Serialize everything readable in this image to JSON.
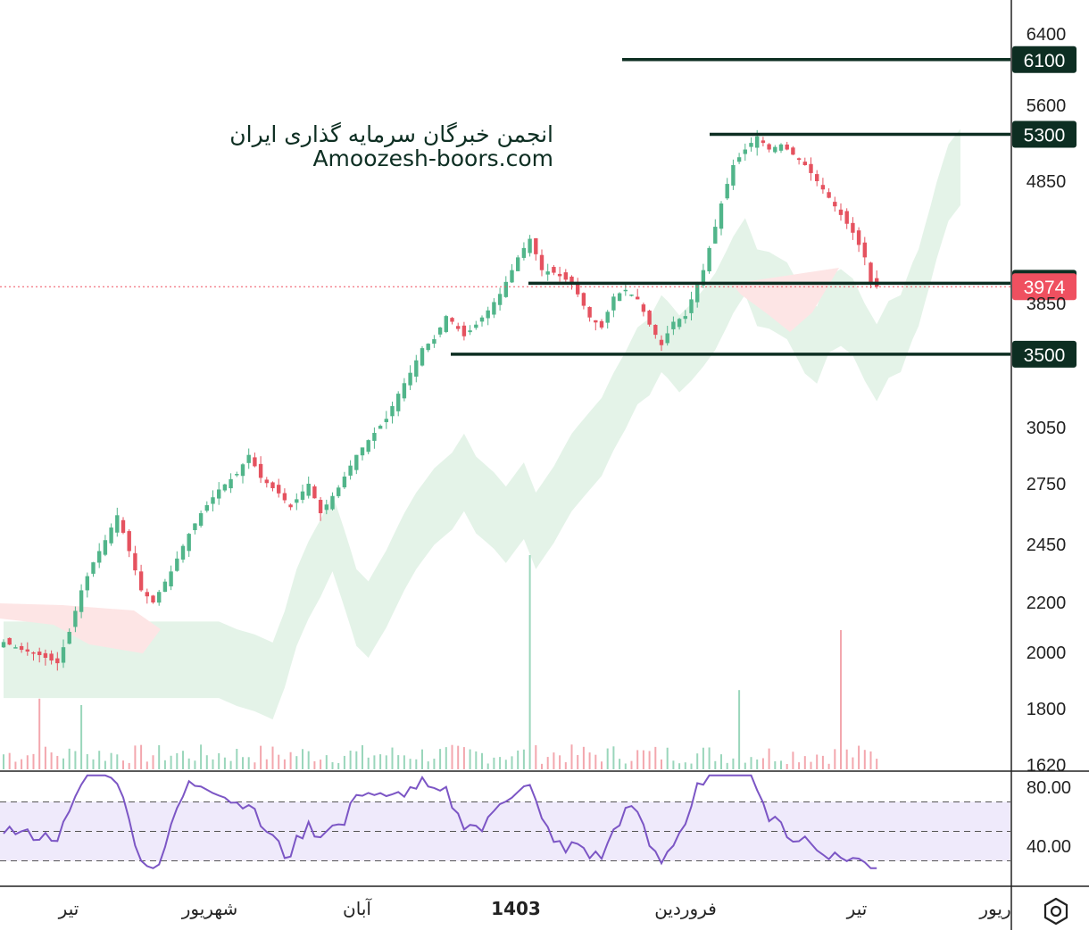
{
  "watermark": {
    "line1": "انجمن خبرگان سرمایه گذاری ایران",
    "line2": "Amoozesh-boors.com"
  },
  "chart_data": [
    {
      "type": "candlestick",
      "title": "",
      "y_axis_ticks": [
        6400,
        5600,
        4850,
        3850,
        3050,
        2750,
        2450,
        2200,
        2000,
        1800,
        1620
      ],
      "y_scale": "log",
      "ylim": [
        1600,
        6600
      ],
      "x_axis_labels": [
        "تیر",
        "شهریور",
        "آبان",
        "1403",
        "فروردین",
        "تیر",
        "ریور"
      ],
      "last_price": 3974,
      "horizontal_levels": [
        {
          "value": 6100,
          "label": "6100"
        },
        {
          "value": 5300,
          "label": "5300"
        },
        {
          "value": 4000,
          "label": "4000"
        },
        {
          "value": 3500,
          "label": "3500"
        }
      ],
      "price_path": [
        [
          0,
          2040
        ],
        [
          3,
          2010
        ],
        [
          6,
          1990
        ],
        [
          9,
          1960
        ],
        [
          11,
          2080
        ],
        [
          13,
          2250
        ],
        [
          15,
          2370
        ],
        [
          17,
          2470
        ],
        [
          19,
          2590
        ],
        [
          21,
          2420
        ],
        [
          23,
          2250
        ],
        [
          25,
          2200
        ],
        [
          28,
          2330
        ],
        [
          31,
          2500
        ],
        [
          33,
          2600
        ],
        [
          36,
          2720
        ],
        [
          39,
          2800
        ],
        [
          41,
          2900
        ],
        [
          43,
          2780
        ],
        [
          46,
          2700
        ],
        [
          48,
          2630
        ],
        [
          51,
          2750
        ],
        [
          53,
          2600
        ],
        [
          56,
          2730
        ],
        [
          59,
          2900
        ],
        [
          62,
          3020
        ],
        [
          64,
          3100
        ],
        [
          66,
          3250
        ],
        [
          68,
          3380
        ],
        [
          70,
          3540
        ],
        [
          72,
          3600
        ],
        [
          74,
          3760
        ],
        [
          75,
          3720
        ],
        [
          77,
          3620
        ],
        [
          79,
          3700
        ],
        [
          81,
          3800
        ],
        [
          83,
          3920
        ],
        [
          85,
          4100
        ],
        [
          86,
          4200
        ],
        [
          88,
          4350
        ],
        [
          90,
          4100
        ],
        [
          92,
          4080
        ],
        [
          95,
          4000
        ],
        [
          98,
          3750
        ],
        [
          100,
          3680
        ],
        [
          102,
          3900
        ],
        [
          104,
          3950
        ],
        [
          106,
          3880
        ],
        [
          108,
          3700
        ],
        [
          110,
          3560
        ],
        [
          112,
          3720
        ],
        [
          114,
          3760
        ],
        [
          116,
          4000
        ],
        [
          117,
          4100
        ],
        [
          119,
          4450
        ],
        [
          120,
          4650
        ],
        [
          122,
          5000
        ],
        [
          124,
          5150
        ],
        [
          126,
          5280
        ],
        [
          128,
          5150
        ],
        [
          130,
          5200
        ],
        [
          132,
          5100
        ],
        [
          134,
          5000
        ],
        [
          136,
          4850
        ],
        [
          138,
          4700
        ],
        [
          140,
          4550
        ],
        [
          142,
          4400
        ],
        [
          144,
          4200
        ],
        [
          145,
          4000
        ],
        [
          146,
          3974
        ]
      ],
      "volume_spikes": [
        {
          "index": 88,
          "relative": 1.0
        },
        {
          "index": 140,
          "relative": 0.65
        },
        {
          "index": 6,
          "relative": 0.33
        },
        {
          "index": 13,
          "relative": 0.3
        },
        {
          "index": 123,
          "relative": 0.37
        }
      ],
      "ichimoku_cloud": {
        "colors": {
          "bullish": "#e4f3e8",
          "bearish": "#fde5e5"
        }
      },
      "colors": {
        "up": "#51b58a",
        "down": "#e5525f",
        "levels": "#0d2e22",
        "last_price_tag": "#ef5060",
        "level_tag": "#0d2e22"
      }
    },
    {
      "type": "line",
      "name": "RSI",
      "y_axis_ticks": [
        80.0,
        40.0
      ],
      "ylim": [
        20,
        100
      ],
      "band": [
        30,
        70
      ],
      "midline": 50,
      "line_color": "#7c56c5",
      "band_color": "#efeafb"
    }
  ],
  "icons": {
    "settings": "hexagon-settings-icon"
  }
}
